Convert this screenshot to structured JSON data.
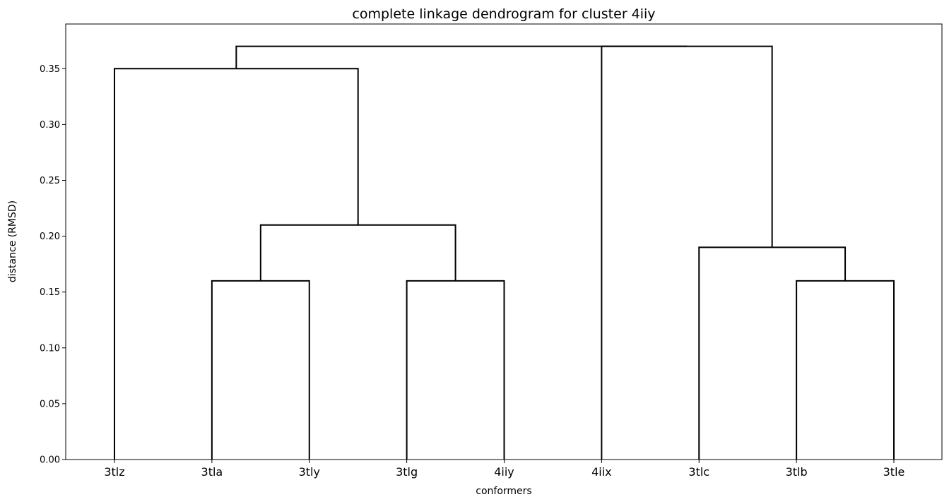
{
  "chart_data": {
    "type": "dendrogram",
    "title": "complete linkage dendrogram for cluster 4iiy",
    "xlabel": "conformers",
    "ylabel": "distance (RMSD)",
    "ylim": [
      0,
      0.39
    ],
    "yticks": [
      0.0,
      0.05,
      0.1,
      0.15,
      0.2,
      0.25,
      0.3,
      0.35
    ],
    "ytick_labels": [
      "0.00",
      "0.05",
      "0.10",
      "0.15",
      "0.20",
      "0.25",
      "0.30",
      "0.35"
    ],
    "leaves": [
      "3tlz",
      "3tla",
      "3tly",
      "3tlg",
      "4iiy",
      "4iix",
      "3tlc",
      "3tlb",
      "3tle"
    ],
    "grid": false,
    "merges": [
      {
        "left": "3tla",
        "right": "3tly",
        "height": 0.16
      },
      {
        "left": "3tlg",
        "right": "4iiy",
        "height": 0.16
      },
      {
        "left": "3tlb",
        "right": "3tle",
        "height": 0.16
      },
      {
        "left": "3tlc",
        "right": "(3tlb, 3tle)",
        "height": 0.19
      },
      {
        "left": "(3tla, 3tly)",
        "right": "(3tlg, 4iiy)",
        "height": 0.21
      },
      {
        "left": "3tlz",
        "right": "((3tla, 3tly), (3tlg, 4iiy))",
        "height": 0.35
      },
      {
        "left": "4iix",
        "right": "(3tlc, (3tlb, 3tle))",
        "height": 0.37
      },
      {
        "left": "(3tlz, ((3tla, 3tly), (3tlg, 4iiy)))",
        "right": "(4iix, (3tlc, (3tlb, 3tle)))",
        "height": 0.37
      }
    ],
    "line_color": "#000000"
  }
}
